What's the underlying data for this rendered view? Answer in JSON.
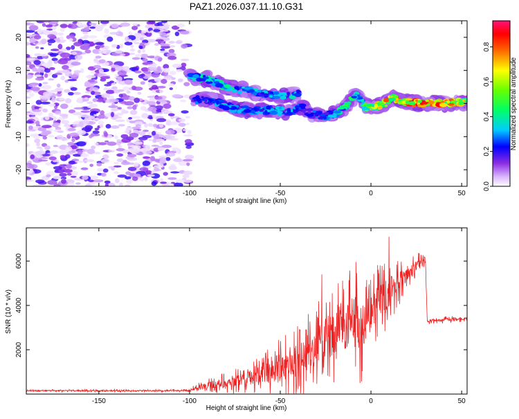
{
  "title": "PAZ1.2026.037.11.10.G31",
  "chart_data": [
    {
      "type": "heatmap",
      "name": "spectrogram",
      "xlabel": "Height of straight line (km)",
      "ylabel": "Frequency (Hz)",
      "xlim": [
        -190,
        53
      ],
      "ylim": [
        -25,
        25
      ],
      "xticks": [
        -150,
        -100,
        -50,
        0,
        50
      ],
      "yticks": [
        -20,
        -10,
        0,
        10,
        20
      ],
      "colorbar": {
        "label": "Normalized spectral amplitude",
        "range": [
          0,
          0.95
        ],
        "ticks": [
          0.0,
          0.2,
          0.4,
          0.6,
          0.8
        ]
      },
      "noise_region_x": [
        -190,
        -100
      ],
      "signal_track": [
        {
          "x": -98,
          "f": 1.0,
          "a": 0.25
        },
        {
          "x": -92,
          "f": 1.5,
          "a": 0.3
        },
        {
          "x": -85,
          "f": 0.5,
          "a": 0.3
        },
        {
          "x": -75,
          "f": -1.5,
          "a": 0.3
        },
        {
          "x": -65,
          "f": -2.0,
          "a": 0.35
        },
        {
          "x": -55,
          "f": -2.0,
          "a": 0.3
        },
        {
          "x": -45,
          "f": -2.5,
          "a": 0.3
        },
        {
          "x": -38,
          "f": -1.0,
          "a": 0.3
        },
        {
          "x": -33,
          "f": -3.0,
          "a": 0.25
        },
        {
          "x": -25,
          "f": -4.0,
          "a": 0.3
        },
        {
          "x": -18,
          "f": -2.5,
          "a": 0.35
        },
        {
          "x": -12,
          "f": 0.0,
          "a": 0.5
        },
        {
          "x": -8,
          "f": 3.0,
          "a": 0.35
        },
        {
          "x": -3,
          "f": -1.0,
          "a": 0.5
        },
        {
          "x": 2,
          "f": -1.0,
          "a": 0.65
        },
        {
          "x": 8,
          "f": 0.0,
          "a": 0.75
        },
        {
          "x": 12,
          "f": 1.5,
          "a": 0.7
        },
        {
          "x": 20,
          "f": 0.5,
          "a": 0.8
        },
        {
          "x": 30,
          "f": 0.0,
          "a": 0.85
        },
        {
          "x": 40,
          "f": 0.0,
          "a": 0.75
        },
        {
          "x": 53,
          "f": 0.5,
          "a": 0.6
        }
      ],
      "secondary_track": [
        {
          "x": -100,
          "f": 8.0,
          "a": 0.3
        },
        {
          "x": -90,
          "f": 7.5,
          "a": 0.4
        },
        {
          "x": -80,
          "f": 5.0,
          "a": 0.4
        },
        {
          "x": -70,
          "f": 4.0,
          "a": 0.35
        },
        {
          "x": -60,
          "f": 3.0,
          "a": 0.3
        },
        {
          "x": -50,
          "f": 2.5,
          "a": 0.3
        },
        {
          "x": -40,
          "f": 3.0,
          "a": 0.35
        }
      ]
    },
    {
      "type": "line",
      "name": "snr",
      "xlabel": "Height of straight line (km)",
      "ylabel": "SNR (10 * v/v)",
      "xlim": [
        -190,
        53
      ],
      "ylim": [
        0,
        7500
      ],
      "xticks": [
        -150,
        -100,
        -50,
        0,
        50
      ],
      "yticks": [
        2000,
        4000,
        6000
      ],
      "color": "#ee2222",
      "envelope": [
        {
          "x": -190,
          "base": 150,
          "spread": 60
        },
        {
          "x": -100,
          "base": 150,
          "spread": 60
        },
        {
          "x": -95,
          "base": 300,
          "spread": 300
        },
        {
          "x": -80,
          "base": 500,
          "spread": 500
        },
        {
          "x": -60,
          "base": 900,
          "spread": 900
        },
        {
          "x": -50,
          "base": 1200,
          "spread": 1400
        },
        {
          "x": -40,
          "base": 1500,
          "spread": 1700
        },
        {
          "x": -30,
          "base": 2200,
          "spread": 2000
        },
        {
          "x": -20,
          "base": 2800,
          "spread": 2300
        },
        {
          "x": -10,
          "base": 3500,
          "spread": 2800
        },
        {
          "x": -6,
          "base": 2500,
          "spread": 3000
        },
        {
          "x": 0,
          "base": 3800,
          "spread": 1800
        },
        {
          "x": 10,
          "base": 4500,
          "spread": 1700
        },
        {
          "x": 20,
          "base": 5500,
          "spread": 700
        },
        {
          "x": 30,
          "base": 6000,
          "spread": 500
        },
        {
          "x": 31,
          "base": 3300,
          "spread": 150
        },
        {
          "x": 53,
          "base": 3400,
          "spread": 150
        }
      ],
      "peaks": [
        {
          "x": -6,
          "y": 7500
        },
        {
          "x": 10,
          "y": 7100
        },
        {
          "x": -27,
          "y": 5400
        },
        {
          "x": 5,
          "y": 5800
        },
        {
          "x": -18,
          "y": 5000
        },
        {
          "x": -6,
          "y": 500
        }
      ]
    }
  ]
}
